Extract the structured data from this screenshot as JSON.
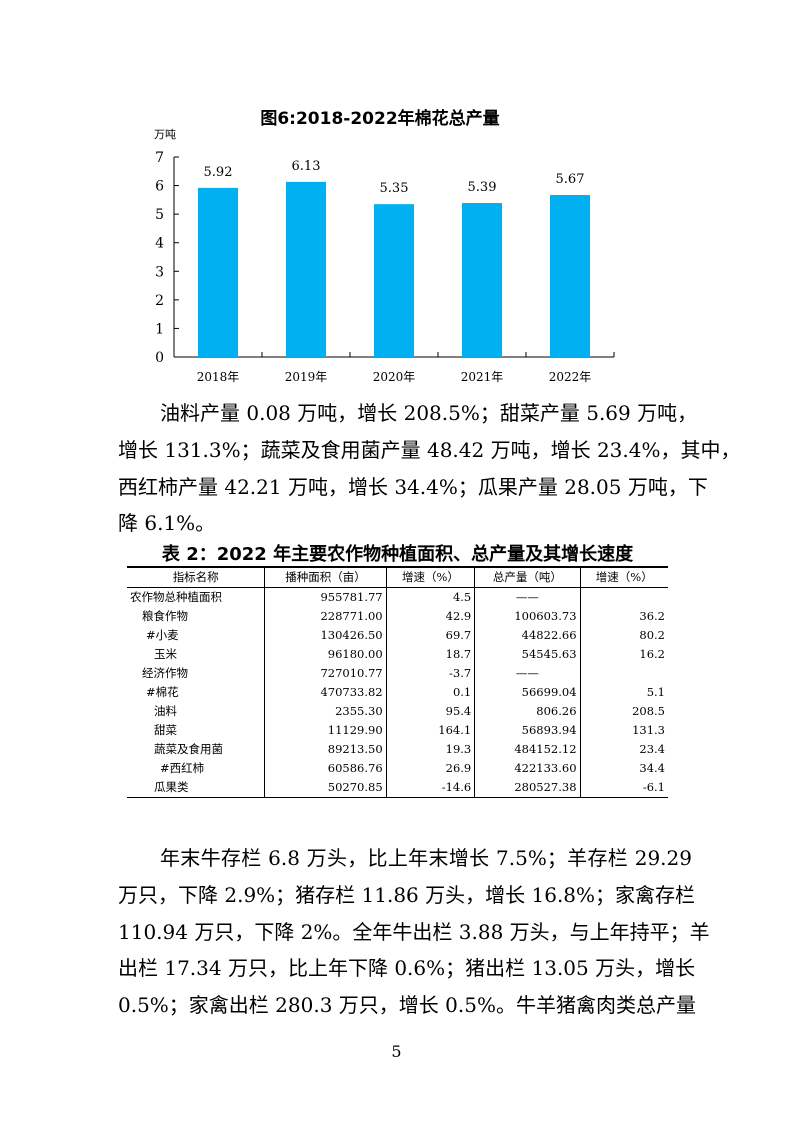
{
  "chart_data": {
    "type": "bar",
    "title": "图6:2018-2022年棉花总产量",
    "ylabel": "万吨",
    "categories": [
      "2018年",
      "2019年",
      "2020年",
      "2021年",
      "2022年"
    ],
    "values": [
      5.92,
      6.13,
      5.35,
      5.39,
      5.67
    ],
    "data_labels": [
      "5.92",
      "6.13",
      "5.35",
      "5.39",
      "5.67"
    ],
    "ylim": [
      0,
      7
    ],
    "yticks": [
      "0",
      "1",
      "2",
      "3",
      "4",
      "5",
      "6",
      "7"
    ],
    "grid": false,
    "bar_color": "#00B0F0"
  },
  "paragraph1": [
    "油料产量 0.08 万吨，增长 208.5%；甜菜产量 5.69 万吨，",
    "增长 131.3%；蔬菜及食用菌产量 48.42 万吨，增长 23.4%，其中，",
    "西红柿产量 42.21 万吨，增长 34.4%；瓜果产量 28.05 万吨，下",
    "降 6.1%。"
  ],
  "table": {
    "title": "表 2：2022 年主要农作物种植面积、总产量及其增长速度",
    "headers": [
      "指标名称",
      "播种面积（亩）",
      "增速（%）",
      "总产量（吨）",
      "增速（%）"
    ],
    "rows": [
      [
        "农作物总种植面积",
        "955781.77",
        "4.5",
        "——",
        ""
      ],
      [
        "粮食作物",
        "228771.00",
        "42.9",
        "100603.73",
        "36.2"
      ],
      [
        "#小麦",
        "130426.50",
        "69.7",
        "44822.66",
        "80.2"
      ],
      [
        "玉米",
        "96180.00",
        "18.7",
        "54545.63",
        "16.2"
      ],
      [
        "经济作物",
        "727010.77",
        "-3.7",
        "——",
        ""
      ],
      [
        "#棉花",
        "470733.82",
        "0.1",
        "56699.04",
        "5.1"
      ],
      [
        "油料",
        "2355.30",
        "95.4",
        "806.26",
        "208.5"
      ],
      [
        "甜菜",
        "11129.90",
        "164.1",
        "56893.94",
        "131.3"
      ],
      [
        "蔬菜及食用菌",
        "89213.50",
        "19.3",
        "484152.12",
        "23.4"
      ],
      [
        "#西红柿",
        "60586.76",
        "26.9",
        "422133.60",
        "34.4"
      ],
      [
        "瓜果类",
        "50270.85",
        "-14.6",
        "280527.38",
        "-6.1"
      ]
    ]
  },
  "paragraph2": [
    "年末牛存栏 6.8 万头，比上年末增长 7.5%；羊存栏 29.29",
    "万只，下降 2.9%；猪存栏 11.86 万头，增长 16.8%；家禽存栏",
    "110.94 万只，下降 2%。全年牛出栏 3.88 万头，与上年持平；羊",
    "出栏 17.34 万只，比上年下降 0.6%；猪出栏 13.05 万头，增长",
    "0.5%；家禽出栏 280.3 万只，增长 0.5%。牛羊猪禽肉类总产量"
  ],
  "page_number": "5"
}
